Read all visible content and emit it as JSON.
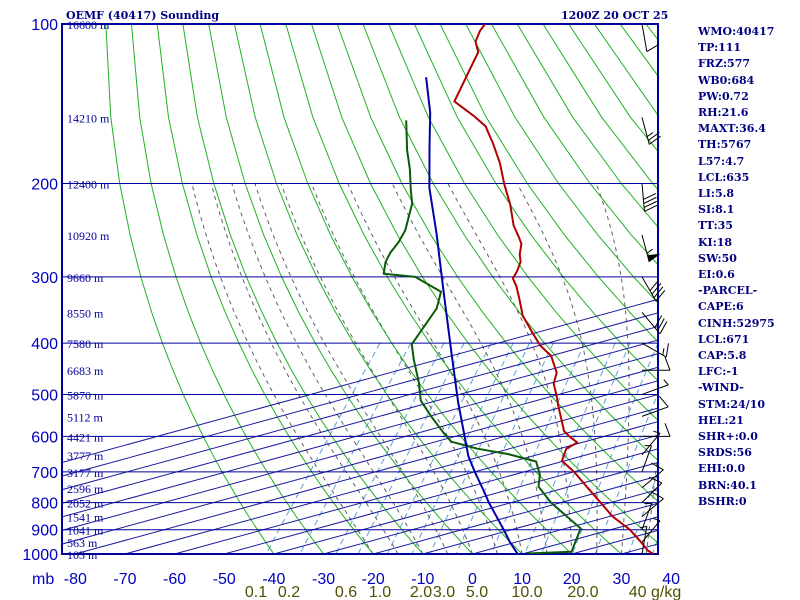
{
  "header": {
    "station": "OEMF (40417) Sounding",
    "time": "1200Z 20 OCT 25"
  },
  "colors": {
    "frame": "#00009c",
    "isotherm": "#1a1aa0",
    "dry_adiabat": "#22b022",
    "moist_adiabat": "#606060",
    "mixing_ratio": "#5aa0d8",
    "temperature": "#b00000",
    "dewpoint": "#0a5a0a",
    "parcel": "#0000a8",
    "wind_barb": "#000000",
    "axis_text": "#0000c0",
    "mixing_text": "#505000",
    "panel_text": "#000080"
  },
  "chart_data": {
    "type": "line",
    "title": "OEMF (40417) Sounding",
    "subtitle": "1200Z 20 OCT 25",
    "y_axis": {
      "label": "mb",
      "scale": "log",
      "range": [
        1000,
        100
      ],
      "ticks": [
        100,
        200,
        300,
        400,
        500,
        600,
        700,
        800,
        900,
        1000
      ]
    },
    "x_axis": {
      "range": [
        -80,
        40
      ],
      "ticks": [
        -80,
        -70,
        -60,
        -50,
        -40,
        -30,
        -20,
        -10,
        0,
        10,
        20,
        30,
        40
      ],
      "skewed": true
    },
    "height_labels": [
      {
        "p": 100,
        "label": "16600 m"
      },
      {
        "p": 150,
        "label": "14210 m"
      },
      {
        "p": 200,
        "label": "12400 m"
      },
      {
        "p": 250,
        "label": "10920 m"
      },
      {
        "p": 300,
        "label": "9660 m"
      },
      {
        "p": 350,
        "label": "8550 m"
      },
      {
        "p": 400,
        "label": "7580 m"
      },
      {
        "p": 450,
        "label": "6683 m"
      },
      {
        "p": 500,
        "label": "5870 m"
      },
      {
        "p": 550,
        "label": "5112 m"
      },
      {
        "p": 600,
        "label": "4421 m"
      },
      {
        "p": 650,
        "label": "3777 m"
      },
      {
        "p": 700,
        "label": "3177 m"
      },
      {
        "p": 750,
        "label": "2596 m"
      },
      {
        "p": 800,
        "label": "2052 m"
      },
      {
        "p": 850,
        "label": "1541 m"
      },
      {
        "p": 900,
        "label": "1041 m"
      },
      {
        "p": 950,
        "label": "563 m"
      },
      {
        "p": 1000,
        "label": "103 m"
      }
    ],
    "mixing_ratio_labels": [
      "0.1",
      "0.2",
      "0.6",
      "1.0",
      "2.0",
      "3.0",
      "5.0",
      "10.0",
      "20.0",
      "40 g/kg"
    ],
    "series": [
      {
        "points": [
          [
            100,
            -76
          ],
          [
            103,
            -76
          ],
          [
            108,
            -75.3
          ],
          [
            113,
            -73.2
          ],
          [
            118,
            -72.7
          ],
          [
            140,
            -70.7
          ],
          [
            149,
            -64.7
          ],
          [
            156,
            -60.7
          ],
          [
            162,
            -58.7
          ],
          [
            168,
            -56.7
          ],
          [
            183,
            -52.4
          ],
          [
            201,
            -48.3
          ],
          [
            219,
            -44.2
          ],
          [
            240,
            -40.4
          ],
          [
            252,
            -37.7
          ],
          [
            260,
            -36.1
          ],
          [
            272,
            -34.9
          ],
          [
            281,
            -33.6
          ],
          [
            293,
            -32.9
          ],
          [
            302,
            -32.7
          ],
          [
            312,
            -30.9
          ],
          [
            329,
            -28.5
          ],
          [
            355,
            -25.2
          ],
          [
            380,
            -21.1
          ],
          [
            404,
            -17.3
          ],
          [
            423,
            -13.5
          ],
          [
            455,
            -9.9
          ],
          [
            477,
            -8.9
          ],
          [
            503,
            -6.5
          ],
          [
            530,
            -4.3
          ],
          [
            560,
            -1.8
          ],
          [
            586,
            0.2
          ],
          [
            603,
            2.5
          ],
          [
            616,
            4.6
          ],
          [
            633,
            3.3
          ],
          [
            667,
            4.2
          ],
          [
            700,
            8.3
          ],
          [
            750,
            13.4
          ],
          [
            850,
            22.7
          ],
          [
            900,
            28.1
          ],
          [
            950,
            32.2
          ],
          [
            985,
            34.8
          ],
          [
            1000,
            36.4
          ]
        ]
      },
      {
        "points": [
          [
            152,
            -77.6
          ],
          [
            173,
            -73
          ],
          [
            188,
            -69.6
          ],
          [
            206,
            -66.3
          ],
          [
            218,
            -64.1
          ],
          [
            245,
            -61.5
          ],
          [
            258,
            -61.1
          ],
          [
            270,
            -61.2
          ],
          [
            281,
            -60.8
          ],
          [
            296,
            -59.4
          ],
          [
            300,
            -52.6
          ],
          [
            320,
            -45.2
          ],
          [
            344,
            -43.6
          ],
          [
            402,
            -43.3
          ],
          [
            430,
            -40.6
          ],
          [
            476,
            -36.1
          ],
          [
            513,
            -33.2
          ],
          [
            550,
            -28.7
          ],
          [
            588,
            -24.1
          ],
          [
            614,
            -20.9
          ],
          [
            633,
            -14.6
          ],
          [
            648,
            -7.6
          ],
          [
            669,
            -0.9
          ],
          [
            708,
            1.8
          ],
          [
            746,
            3.3
          ],
          [
            800,
            8.2
          ],
          [
            895,
            18
          ],
          [
            990,
            19.6
          ],
          [
            998,
            11
          ]
        ]
      },
      {
        "points": [
          [
            126,
            -80
          ],
          [
            147,
            -73.9
          ],
          [
            172,
            -68.7
          ],
          [
            204,
            -62.9
          ],
          [
            248,
            -54.8
          ],
          [
            319,
            -44.8
          ],
          [
            422,
            -33.6
          ],
          [
            517,
            -25.4
          ],
          [
            654,
            -15.3
          ],
          [
            700,
            -11.7
          ],
          [
            764,
            -6.8
          ],
          [
            800,
            -4.3
          ],
          [
            900,
            2.7
          ],
          [
            950,
            5.8
          ],
          [
            1000,
            9.1
          ]
        ]
      }
    ],
    "wind_barbs": [
      {
        "p": 100,
        "dir": 350,
        "kt": 10
      },
      {
        "p": 150,
        "dir": 345,
        "kt": 25
      },
      {
        "p": 200,
        "dir": 355,
        "kt": 40
      },
      {
        "p": 250,
        "dir": 345,
        "kt": 55
      },
      {
        "p": 300,
        "dir": 330,
        "kt": 40
      },
      {
        "p": 350,
        "dir": 320,
        "kt": 30
      },
      {
        "p": 400,
        "dir": 300,
        "kt": 15
      },
      {
        "p": 450,
        "dir": 270,
        "kt": 10
      },
      {
        "p": 500,
        "dir": 250,
        "kt": 5
      },
      {
        "p": 550,
        "dir": 250,
        "kt": 10
      },
      {
        "p": 600,
        "dir": 270,
        "kt": 10
      },
      {
        "p": 650,
        "dir": 220,
        "kt": 5
      },
      {
        "p": 700,
        "dir": 200,
        "kt": 5
      },
      {
        "p": 750,
        "dir": 230,
        "kt": 10
      },
      {
        "p": 800,
        "dir": 225,
        "kt": 10
      },
      {
        "p": 850,
        "dir": 230,
        "kt": 10
      },
      {
        "p": 900,
        "dir": 200,
        "kt": 5
      },
      {
        "p": 950,
        "dir": 220,
        "kt": 5
      },
      {
        "p": 1000,
        "dir": 190,
        "kt": 5
      }
    ]
  },
  "indices": [
    "WMO:40417",
    "TP:111",
    "FRZ:577",
    "WB0:684",
    "PW:0.72",
    "RH:21.6",
    "MAXT:36.4",
    "TH:5767",
    "L57:4.7",
    "LCL:635",
    "LI:5.8",
    "SI:8.1",
    "TT:35",
    "KI:18",
    "SW:50",
    "EI:0.6",
    "-PARCEL-",
    "CAPE:6",
    "CINH:52975",
    "LCL:671",
    "CAP:5.8",
    "LFC:-1",
    "-WIND-",
    "STM:24/10",
    "HEL:21",
    "SHR+:0.0",
    "SRDS:56",
    "EHI:0.0",
    "BRN:40.1",
    "BSHR:0"
  ]
}
